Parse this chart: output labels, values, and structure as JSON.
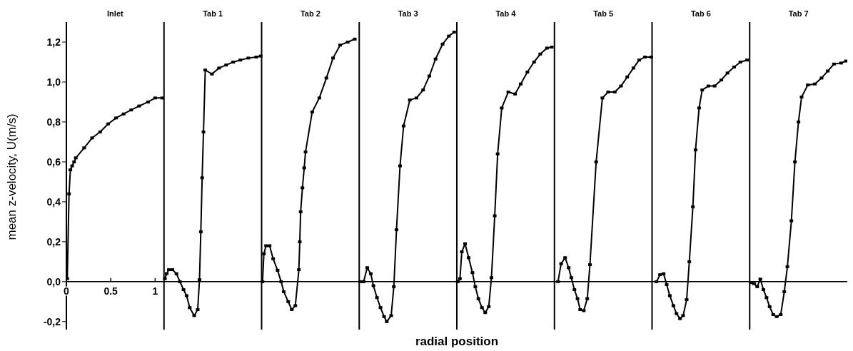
{
  "chart_data": {
    "type": "line",
    "xlabel": "radial position",
    "ylabel": "mean z-velocity, U(m/s)",
    "xlim": [
      0,
      8.8
    ],
    "xticks": [
      0,
      0.5,
      1
    ],
    "ylim": [
      -0.24,
      1.3
    ],
    "yticks": [
      {
        "value": -0.2,
        "label": "-0,2"
      },
      {
        "value": 0,
        "label": "0,0"
      },
      {
        "value": 0.2,
        "label": "0,2"
      },
      {
        "value": 0.4,
        "label": "0,4"
      },
      {
        "value": 0.6,
        "label": "0,6"
      },
      {
        "value": 0.8,
        "label": "0,8"
      },
      {
        "value": 1,
        "label": "1,0"
      },
      {
        "value": 1.2,
        "label": "1,2"
      }
    ],
    "marker": "square",
    "line_style": "solid",
    "grid": false,
    "legend": false,
    "ref_lines": [
      {
        "axis": "x",
        "value": 1.1,
        "color": "#000000",
        "line_style": "solid"
      },
      {
        "axis": "x",
        "value": 2.2,
        "color": "#000000",
        "line_style": "solid"
      },
      {
        "axis": "x",
        "value": 3.3,
        "color": "#000000",
        "line_style": "solid"
      },
      {
        "axis": "x",
        "value": 4.4,
        "color": "#000000",
        "line_style": "solid"
      },
      {
        "axis": "x",
        "value": 5.5,
        "color": "#000000",
        "line_style": "solid"
      },
      {
        "axis": "x",
        "value": 6.6,
        "color": "#000000",
        "line_style": "solid"
      },
      {
        "axis": "x",
        "value": 7.7,
        "color": "#000000",
        "line_style": "solid"
      }
    ],
    "annotations": [
      "Inlet",
      "Tab 1",
      "Tab 2",
      "Tab 3",
      "Tab 4",
      "Tab 5",
      "Tab 6",
      "Tab 7"
    ],
    "series": [
      {
        "color": "#000000",
        "x": [
          0.01,
          0.03,
          0.045,
          0.065,
          0.087,
          0.106,
          0.2,
          0.29,
          0.38,
          0.47,
          0.56,
          0.645,
          0.73,
          0.82,
          0.92,
          1.0,
          1.08
        ],
        "values": [
          0.015,
          0.44,
          0.56,
          0.58,
          0.6,
          0.62,
          0.67,
          0.72,
          0.75,
          0.79,
          0.82,
          0.84,
          0.86,
          0.88,
          0.9,
          0.92,
          0.92
        ]
      },
      {
        "color": "#000000",
        "x": [
          1.11,
          1.13,
          1.155,
          1.195,
          1.24,
          1.28,
          1.32,
          1.355,
          1.39,
          1.44,
          1.48,
          1.5,
          1.515,
          1.53,
          1.545,
          1.565,
          1.64,
          1.72,
          1.8,
          1.88,
          1.96,
          2.05,
          2.14,
          2.19
        ],
        "values": [
          0.015,
          0.04,
          0.06,
          0.06,
          0.04,
          0.0,
          -0.04,
          -0.07,
          -0.13,
          -0.17,
          -0.14,
          0.01,
          0.25,
          0.52,
          0.75,
          1.06,
          1.04,
          1.07,
          1.085,
          1.1,
          1.11,
          1.12,
          1.125,
          1.13
        ]
      },
      {
        "color": "#000000",
        "x": [
          2.21,
          2.226,
          2.25,
          2.29,
          2.33,
          2.38,
          2.42,
          2.45,
          2.5,
          2.54,
          2.58,
          2.62,
          2.63,
          2.64,
          2.66,
          2.68,
          2.695,
          2.77,
          2.85,
          2.93,
          3.005,
          3.085,
          3.17,
          3.25
        ],
        "values": [
          0.0,
          0.14,
          0.18,
          0.18,
          0.115,
          0.057,
          0.0,
          -0.05,
          -0.1,
          -0.14,
          -0.12,
          0.06,
          0.2,
          0.35,
          0.47,
          0.57,
          0.65,
          0.85,
          0.92,
          1.02,
          1.12,
          1.185,
          1.2,
          1.215
        ]
      },
      {
        "color": "#000000",
        "x": [
          3.31,
          3.35,
          3.39,
          3.43,
          3.46,
          3.5,
          3.54,
          3.58,
          3.61,
          3.66,
          3.69,
          3.72,
          3.76,
          3.8,
          3.87,
          3.945,
          4.02,
          4.09,
          4.16,
          4.24,
          4.31,
          4.37
        ],
        "values": [
          0.0,
          0.0,
          0.07,
          0.04,
          -0.02,
          -0.08,
          -0.13,
          -0.175,
          -0.2,
          -0.17,
          -0.025,
          0.26,
          0.58,
          0.78,
          0.91,
          0.92,
          0.96,
          1.03,
          1.115,
          1.19,
          1.23,
          1.25
        ]
      },
      {
        "color": "#000000",
        "x": [
          4.41,
          4.435,
          4.456,
          4.493,
          4.533,
          4.576,
          4.608,
          4.643,
          4.683,
          4.72,
          4.76,
          4.79,
          4.827,
          4.86,
          4.906,
          4.98,
          5.056,
          5.12,
          5.195,
          5.27,
          5.34,
          5.416,
          5.47
        ],
        "values": [
          0.0,
          0.015,
          0.15,
          0.19,
          0.12,
          0.045,
          -0.025,
          -0.085,
          -0.13,
          -0.155,
          -0.125,
          0.02,
          0.33,
          0.64,
          0.87,
          0.95,
          0.94,
          0.99,
          1.05,
          1.1,
          1.14,
          1.17,
          1.175
        ]
      },
      {
        "color": "#000000",
        "x": [
          5.54,
          5.575,
          5.62,
          5.66,
          5.69,
          5.725,
          5.76,
          5.79,
          5.83,
          5.87,
          5.9,
          5.97,
          6.04,
          6.105,
          6.18,
          6.25,
          6.32,
          6.39,
          6.455,
          6.52,
          6.59
        ],
        "values": [
          0.0,
          0.09,
          0.12,
          0.07,
          0.02,
          -0.04,
          -0.085,
          -0.14,
          -0.145,
          -0.085,
          0.085,
          0.6,
          0.92,
          0.95,
          0.95,
          0.98,
          1.025,
          1.07,
          1.11,
          1.125,
          1.125
        ]
      },
      {
        "color": "#000000",
        "x": [
          6.65,
          6.69,
          6.73,
          6.765,
          6.8,
          6.84,
          6.875,
          6.915,
          6.95,
          6.99,
          7.02,
          7.06,
          7.09,
          7.13,
          7.165,
          7.235,
          7.305,
          7.38,
          7.45,
          7.525,
          7.595,
          7.67
        ],
        "values": [
          0.0,
          0.035,
          0.04,
          -0.015,
          -0.07,
          -0.12,
          -0.16,
          -0.185,
          -0.17,
          -0.09,
          0.1,
          0.375,
          0.66,
          0.87,
          0.96,
          0.98,
          0.98,
          1.01,
          1.045,
          1.075,
          1.1,
          1.11
        ]
      },
      {
        "color": "#000000",
        "x": [
          7.72,
          7.75,
          7.785,
          7.82,
          7.855,
          7.89,
          7.925,
          7.965,
          8.005,
          8.05,
          8.09,
          8.125,
          8.17,
          8.21,
          8.25,
          8.285,
          8.355,
          8.435,
          8.51,
          8.58,
          8.65,
          8.73,
          8.785
        ],
        "values": [
          -0.005,
          -0.01,
          -0.025,
          0.013,
          -0.04,
          -0.08,
          -0.125,
          -0.165,
          -0.175,
          -0.165,
          -0.05,
          0.075,
          0.305,
          0.6,
          0.8,
          0.925,
          0.985,
          0.99,
          1.02,
          1.055,
          1.09,
          1.095,
          1.105
        ]
      }
    ]
  }
}
